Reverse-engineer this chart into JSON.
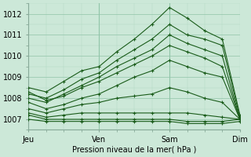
{
  "title": "",
  "xlabel": "Pression niveau de la mer( hPa )",
  "ylim": [
    1006.5,
    1012.5
  ],
  "xlim": [
    0,
    72
  ],
  "yticks": [
    1007,
    1008,
    1009,
    1010,
    1011,
    1012
  ],
  "xtick_positions": [
    0,
    24,
    48,
    72
  ],
  "xtick_labels": [
    "Jeu",
    "Ven",
    "Sam",
    "Dim"
  ],
  "bg_color": "#cce8d8",
  "plot_bg_color": "#cce8d8",
  "grid_major_color": "#90c4a8",
  "grid_minor_color": "#b0d8c0",
  "line_color": "#1a5c1a",
  "marker": "+",
  "series": [
    {
      "x": [
        0,
        6,
        12,
        18,
        24,
        30,
        36,
        42,
        48,
        54,
        60,
        66,
        72
      ],
      "y": [
        1008.5,
        1008.3,
        1008.8,
        1009.3,
        1009.5,
        1010.2,
        1010.8,
        1011.5,
        1012.3,
        1011.8,
        1011.2,
        1010.8,
        1007.2
      ]
    },
    {
      "x": [
        0,
        6,
        12,
        18,
        24,
        30,
        36,
        42,
        48,
        54,
        60,
        66,
        72
      ],
      "y": [
        1008.2,
        1008.0,
        1008.4,
        1008.9,
        1009.2,
        1009.8,
        1010.3,
        1010.8,
        1011.5,
        1011.0,
        1010.8,
        1010.5,
        1007.1
      ]
    },
    {
      "x": [
        0,
        6,
        12,
        18,
        24,
        30,
        36,
        42,
        48,
        54,
        60,
        66,
        72
      ],
      "y": [
        1008.0,
        1007.8,
        1008.2,
        1008.6,
        1009.0,
        1009.5,
        1009.9,
        1010.3,
        1011.0,
        1010.6,
        1010.3,
        1010.0,
        1007.0
      ]
    },
    {
      "x": [
        0,
        6,
        12,
        18,
        24,
        30,
        36,
        42,
        48,
        54,
        60,
        66,
        72
      ],
      "y": [
        1008.3,
        1007.9,
        1008.1,
        1008.5,
        1008.8,
        1009.2,
        1009.6,
        1010.0,
        1010.5,
        1010.2,
        1009.9,
        1009.5,
        1007.0
      ]
    },
    {
      "x": [
        0,
        6,
        12,
        18,
        24,
        30,
        36,
        42,
        48,
        54,
        60,
        66,
        72
      ],
      "y": [
        1007.8,
        1007.5,
        1007.7,
        1008.0,
        1008.2,
        1008.6,
        1009.0,
        1009.3,
        1009.8,
        1009.5,
        1009.2,
        1009.0,
        1007.0
      ]
    },
    {
      "x": [
        0,
        6,
        12,
        18,
        24,
        30,
        36,
        42,
        48,
        54,
        60,
        66,
        72
      ],
      "y": [
        1007.5,
        1007.3,
        1007.5,
        1007.7,
        1007.8,
        1008.0,
        1008.1,
        1008.2,
        1008.5,
        1008.3,
        1008.0,
        1007.8,
        1007.0
      ]
    },
    {
      "x": [
        0,
        6,
        12,
        18,
        24,
        30,
        36,
        42,
        48,
        54,
        60,
        66,
        72
      ],
      "y": [
        1007.3,
        1007.1,
        1007.2,
        1007.3,
        1007.3,
        1007.3,
        1007.3,
        1007.3,
        1007.3,
        1007.3,
        1007.2,
        1007.1,
        1007.0
      ]
    },
    {
      "x": [
        0,
        6,
        12,
        18,
        24,
        30,
        36,
        42,
        48,
        54,
        60,
        66,
        72
      ],
      "y": [
        1007.2,
        1007.0,
        1007.0,
        1007.0,
        1007.0,
        1007.0,
        1007.0,
        1007.0,
        1007.0,
        1006.9,
        1006.9,
        1006.9,
        1007.0
      ]
    },
    {
      "x": [
        0,
        6,
        12,
        18,
        24,
        30,
        36,
        42,
        48,
        54,
        60,
        66,
        72
      ],
      "y": [
        1007.0,
        1006.9,
        1006.9,
        1006.9,
        1006.9,
        1006.9,
        1006.9,
        1006.9,
        1006.9,
        1006.8,
        1006.8,
        1006.8,
        1006.9
      ]
    }
  ]
}
